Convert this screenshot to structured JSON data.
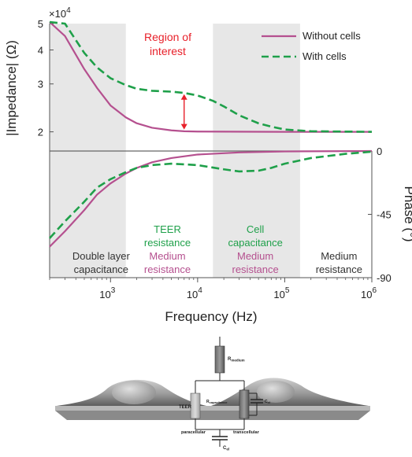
{
  "chart_data": [
    {
      "type": "line",
      "panel": "impedance",
      "x_scale": "log",
      "y_scale": "log",
      "xlim": [
        200,
        1000000
      ],
      "ylim": [
        17000,
        50000
      ],
      "ylabel": "|Impedance| (Ω)",
      "y_multiplier": "×10",
      "y_multiplier_exp": "4",
      "y_ticks": [
        {
          "value": 50000,
          "label": "5"
        },
        {
          "value": 40000,
          "label": "4"
        },
        {
          "value": 30000,
          "label": "3"
        },
        {
          "value": 20000,
          "label": "2"
        }
      ],
      "legend_position": "top-right",
      "annotation": {
        "line1": "Region of",
        "line2": "interest",
        "color": "#e8202a",
        "x": 7000,
        "y_from": 20400,
        "y_to": 27500
      },
      "series": [
        {
          "name": "Without cells",
          "color": "#b5508f",
          "dash": "solid",
          "points": [
            [
              200,
              56000
            ],
            [
              300,
              45000
            ],
            [
              500,
              34000
            ],
            [
              700,
              29000
            ],
            [
              1000,
              25000
            ],
            [
              1500,
              22600
            ],
            [
              2000,
              21500
            ],
            [
              3000,
              20700
            ],
            [
              5000,
              20250
            ],
            [
              7000,
              20100
            ],
            [
              10000,
              20050
            ],
            [
              100000,
              20000
            ],
            [
              1000000,
              20000
            ]
          ]
        },
        {
          "name": "With cells",
          "color": "#1fa04a",
          "dash": "dashed",
          "points": [
            [
              200,
              62000
            ],
            [
              300,
              50000
            ],
            [
              500,
              39000
            ],
            [
              700,
              34500
            ],
            [
              1000,
              31500
            ],
            [
              1500,
              29700
            ],
            [
              2000,
              28800
            ],
            [
              3000,
              28300
            ],
            [
              5000,
              28100
            ],
            [
              7000,
              27800
            ],
            [
              10000,
              27200
            ],
            [
              15000,
              26000
            ],
            [
              20000,
              24800
            ],
            [
              30000,
              23000
            ],
            [
              50000,
              21500
            ],
            [
              70000,
              20900
            ],
            [
              100000,
              20400
            ],
            [
              200000,
              20100
            ],
            [
              1000000,
              20000
            ]
          ]
        }
      ]
    },
    {
      "type": "line",
      "panel": "phase",
      "x_scale": "log",
      "xlim": [
        200,
        1000000
      ],
      "ylim": [
        -90,
        0
      ],
      "xlabel": "Frequency (Hz)",
      "ylabel": "Phase (°)",
      "y_ticks": [
        {
          "value": 0,
          "label": "0"
        },
        {
          "value": -45,
          "label": "-45"
        },
        {
          "value": -90,
          "label": "-90"
        }
      ],
      "x_ticks": [
        {
          "value": 1000,
          "base": "10",
          "exp": "3"
        },
        {
          "value": 10000,
          "base": "10",
          "exp": "4"
        },
        {
          "value": 100000,
          "base": "10",
          "exp": "5"
        },
        {
          "value": 1000000,
          "base": "10",
          "exp": "6"
        }
      ],
      "shaded_bands": [
        [
          200,
          1500
        ],
        [
          15000,
          150000
        ]
      ],
      "series": [
        {
          "name": "Without cells",
          "color": "#b5508f",
          "dash": "solid",
          "points": [
            [
              200,
              -68
            ],
            [
              300,
              -57
            ],
            [
              500,
              -42
            ],
            [
              700,
              -31
            ],
            [
              1000,
              -23
            ],
            [
              1500,
              -16
            ],
            [
              2000,
              -12
            ],
            [
              3000,
              -8
            ],
            [
              5000,
              -5
            ],
            [
              10000,
              -2.5
            ],
            [
              30000,
              -1
            ],
            [
              100000,
              -0.3
            ],
            [
              1000000,
              0
            ]
          ]
        },
        {
          "name": "With cells",
          "color": "#1fa04a",
          "dash": "dashed",
          "points": [
            [
              200,
              -62
            ],
            [
              300,
              -50
            ],
            [
              500,
              -36
            ],
            [
              700,
              -26
            ],
            [
              1000,
              -20
            ],
            [
              1500,
              -15
            ],
            [
              2000,
              -12
            ],
            [
              3000,
              -10
            ],
            [
              5000,
              -9
            ],
            [
              10000,
              -10
            ],
            [
              20000,
              -13
            ],
            [
              30000,
              -14.5
            ],
            [
              50000,
              -14
            ],
            [
              70000,
              -12
            ],
            [
              100000,
              -9
            ],
            [
              200000,
              -5
            ],
            [
              500000,
              -2
            ],
            [
              1000000,
              -0.5
            ]
          ]
        }
      ],
      "region_labels": [
        {
          "lines": [
            {
              "text": "Double layer",
              "color": "#333333"
            },
            {
              "text": "capacitance",
              "color": "#333333"
            }
          ],
          "x": 780
        },
        {
          "lines": [
            {
              "text": "TEER",
              "color": "#1fa04a"
            },
            {
              "text": "resistance",
              "color": "#1fa04a"
            },
            {
              "text": "Medium",
              "color": "#b5508f"
            },
            {
              "text": "resistance",
              "color": "#b5508f"
            }
          ],
          "x": 4500
        },
        {
          "lines": [
            {
              "text": "Cell",
              "color": "#1fa04a"
            },
            {
              "text": "capacitance",
              "color": "#1fa04a"
            },
            {
              "text": "Medium",
              "color": "#b5508f"
            },
            {
              "text": "resistance",
              "color": "#b5508f"
            }
          ],
          "x": 46000
        },
        {
          "lines": [
            {
              "text": "Medium",
              "color": "#333333"
            },
            {
              "text": "resistance",
              "color": "#333333"
            }
          ],
          "x": 420000
        }
      ]
    }
  ],
  "circuit": {
    "r_medium": "R",
    "r_medium_sub": "medium",
    "teer": "TEER",
    "r_capacitance": "R",
    "r_capacitance_sub": "capacitance",
    "c_cl": "C",
    "c_cl_sub": "cl",
    "paracellular": "paracellular",
    "transcellular": "transcellular",
    "c_el": "C",
    "c_el_sub": "el"
  },
  "colors": {
    "band": "#e7e7e7",
    "axis": "#555555",
    "without_cells": "#b5508f",
    "with_cells": "#1fa04a",
    "annotation": "#e8202a"
  }
}
